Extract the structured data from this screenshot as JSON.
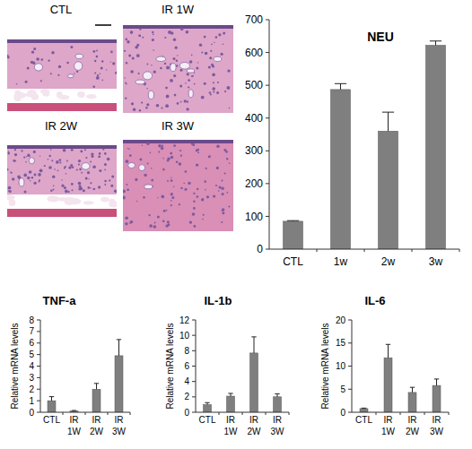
{
  "panels": [
    "CTL",
    "IR 1W",
    "IR 2W",
    "IR 3W"
  ],
  "chart_data": [
    {
      "type": "bar",
      "title": "NEU",
      "categories": [
        "CTL",
        "1w",
        "2w",
        "3w"
      ],
      "values": [
        85,
        487,
        360,
        622
      ],
      "errors": [
        2,
        18,
        58,
        13
      ],
      "color": "#7f7f7f",
      "ylim": [
        0,
        700
      ],
      "yticks": [
        0,
        100,
        200,
        300,
        400,
        500,
        600,
        700
      ],
      "grid": false
    },
    {
      "type": "bar",
      "title": "TNF-a",
      "y_label": "Relative mRNA levels",
      "categories": [
        "CTL",
        "IR 1W",
        "IR 2W",
        "IR 3W"
      ],
      "values": [
        1.0,
        0.1,
        2.0,
        4.9
      ],
      "errors": [
        0.35,
        0.05,
        0.5,
        1.4
      ],
      "color": "#7f7f7f",
      "ylim": [
        0,
        8
      ],
      "yticks": [
        0,
        1,
        2,
        3,
        4,
        5,
        6,
        7,
        8
      ],
      "grid": false
    },
    {
      "type": "bar",
      "title": "IL-1b",
      "y_label": "Relative mRNA levels",
      "categories": [
        "CTL",
        "IR 1W",
        "IR 2W",
        "IR 3W"
      ],
      "values": [
        1.0,
        2.1,
        7.7,
        2.0
      ],
      "errors": [
        0.25,
        0.35,
        2.1,
        0.4
      ],
      "color": "#7f7f7f",
      "ylim": [
        0,
        12
      ],
      "yticks": [
        0,
        2,
        4,
        6,
        8,
        10,
        12
      ],
      "grid": false
    },
    {
      "type": "bar",
      "title": "IL-6",
      "y_label": "Relative mRNA levels",
      "categories": [
        "CTL",
        "IR 1W",
        "IR 2W",
        "IR 3W"
      ],
      "values": [
        0.8,
        11.8,
        4.3,
        5.8
      ],
      "errors": [
        0.1,
        2.9,
        1.1,
        1.4
      ],
      "color": "#7f7f7f",
      "ylim": [
        0,
        20
      ],
      "yticks": [
        0,
        5,
        10,
        15,
        20
      ],
      "grid": false
    }
  ]
}
